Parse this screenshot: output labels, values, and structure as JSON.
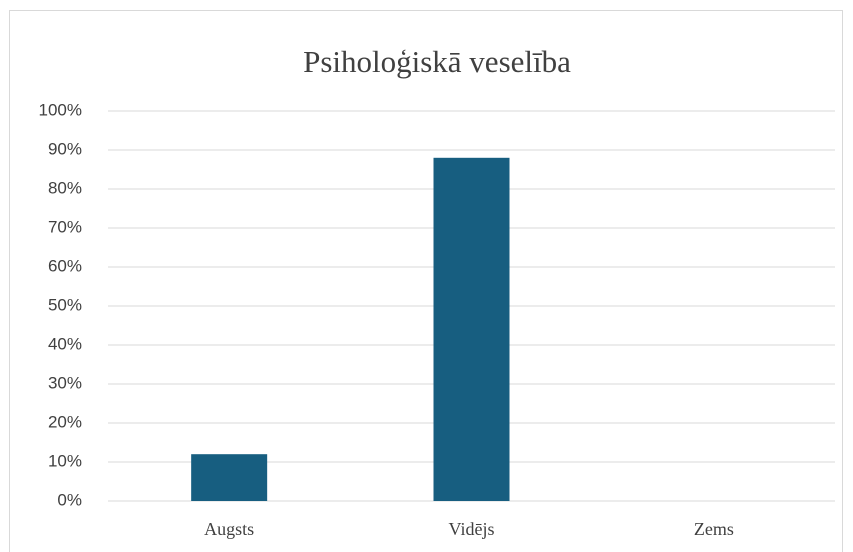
{
  "chart_data": {
    "type": "bar",
    "title": "Psiholoģiskā veselība",
    "categories": [
      "Augsts",
      "Vidējs",
      "Zems"
    ],
    "values": [
      12,
      88,
      0
    ],
    "color": "#175e80",
    "ylim": [
      0,
      100
    ],
    "yticks": [
      {
        "value": 0,
        "label": "0%"
      },
      {
        "value": 10,
        "label": "10%"
      },
      {
        "value": 20,
        "label": "20%"
      },
      {
        "value": 30,
        "label": "30%"
      },
      {
        "value": 40,
        "label": "40%"
      },
      {
        "value": 50,
        "label": "50%"
      },
      {
        "value": 60,
        "label": "60%"
      },
      {
        "value": 70,
        "label": "70%"
      },
      {
        "value": 80,
        "label": "80%"
      },
      {
        "value": 90,
        "label": "90%"
      },
      {
        "value": 100,
        "label": "100%"
      }
    ],
    "grid": true
  }
}
